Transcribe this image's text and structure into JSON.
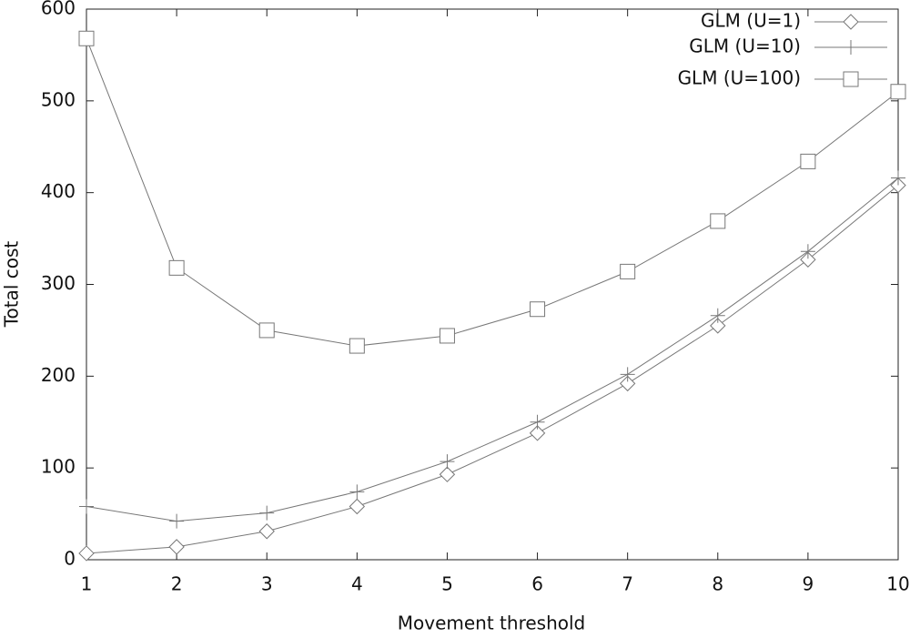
{
  "chart_data": {
    "type": "line",
    "x_label": "Movement threshold",
    "y_label": "Total cost",
    "x": [
      1,
      2,
      3,
      4,
      5,
      6,
      7,
      8,
      9,
      10
    ],
    "series": [
      {
        "name": "GLM (U=1)",
        "color": "#777777",
        "marker": "diamond",
        "values": [
          7,
          14,
          31,
          58,
          93,
          138,
          192,
          255,
          327,
          408
        ]
      },
      {
        "name": "GLM (U=10)",
        "color": "#777777",
        "marker": "plus",
        "values": [
          58,
          42,
          51,
          74,
          107,
          150,
          202,
          266,
          336,
          416
        ]
      },
      {
        "name": "GLM (U=100)",
        "color": "#777777",
        "marker": "square",
        "values": [
          568,
          318,
          250,
          233,
          244,
          273,
          314,
          369,
          434,
          510
        ]
      }
    ],
    "xlim": [
      1,
      10
    ],
    "xticks": [
      1,
      2,
      3,
      4,
      5,
      6,
      7,
      8,
      9,
      10
    ],
    "ylim": [
      0,
      600
    ],
    "yticks": [
      0,
      100,
      200,
      300,
      400,
      500,
      600
    ],
    "grid": false,
    "legend_position": "upper right"
  }
}
